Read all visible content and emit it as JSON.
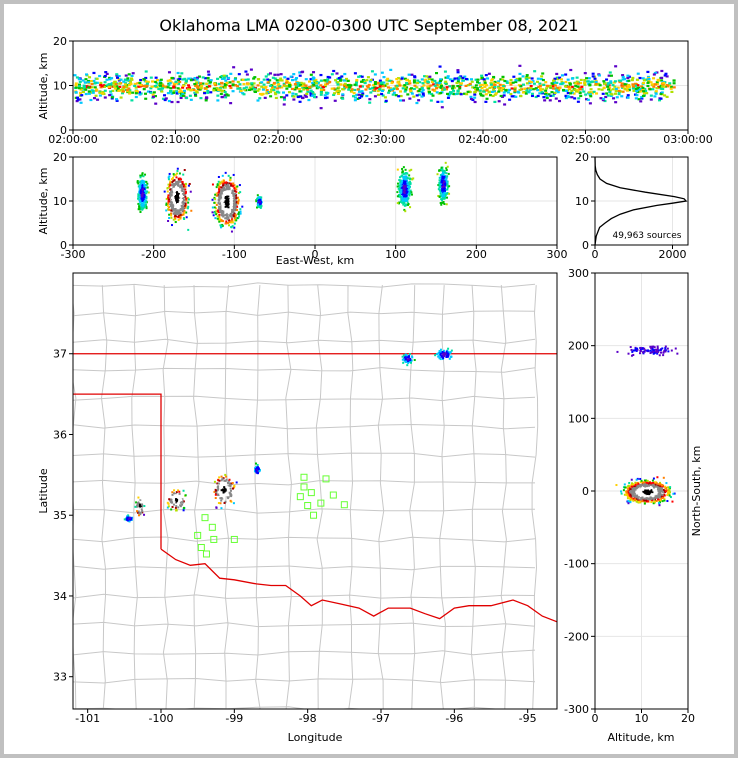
{
  "figure": {
    "title": "Oklahoma LMA 0200-0300 UTC September 08, 2021",
    "source_count_label": "49,963 sources"
  },
  "chart_data": [
    {
      "id": "time-altitude",
      "type": "heatmap",
      "xlabel": "",
      "ylabel": "Altitude, km",
      "x_ticks": [
        "02:00:00",
        "02:10:00",
        "02:20:00",
        "02:30:00",
        "02:40:00",
        "02:50:00",
        "03:00:00"
      ],
      "xlim": [
        "02:00:00",
        "03:00:00"
      ],
      "ylim": [
        0,
        20
      ],
      "y_ticks": [
        0,
        10,
        20
      ],
      "density_band_km": [
        5,
        16
      ],
      "peak_altitude_km": 10
    },
    {
      "id": "east-west-altitude",
      "type": "heatmap",
      "xlabel": "East-West, km",
      "ylabel": "Altitude, km",
      "xlim": [
        -300,
        300
      ],
      "ylim": [
        0,
        20
      ],
      "x_ticks": [
        -300,
        -200,
        -100,
        0,
        100,
        200,
        300
      ],
      "y_ticks": [
        0,
        10,
        20
      ],
      "clusters": [
        {
          "x_km": -215,
          "alt_km": 12,
          "spread_x": 6,
          "spread_alt": 4
        },
        {
          "x_km": -172,
          "alt_km": 11,
          "spread_x": 12,
          "spread_alt": 5
        },
        {
          "x_km": -110,
          "alt_km": 10,
          "spread_x": 14,
          "spread_alt": 5
        },
        {
          "x_km": -70,
          "alt_km": 10,
          "spread_x": 4,
          "spread_alt": 1.5
        },
        {
          "x_km": 110,
          "alt_km": 13,
          "spread_x": 8,
          "spread_alt": 4
        },
        {
          "x_km": 158,
          "alt_km": 14,
          "spread_x": 6,
          "spread_alt": 4
        }
      ]
    },
    {
      "id": "altitude-histogram",
      "type": "line",
      "xlabel": "",
      "ylabel": "",
      "xlim": [
        0,
        2400
      ],
      "ylim": [
        0,
        20
      ],
      "x_ticks": [
        0,
        2000
      ],
      "y_ticks": [
        0,
        10,
        20
      ],
      "altitude_km": [
        0,
        2,
        4,
        5,
        6,
        7,
        8,
        9,
        9.5,
        10,
        10.5,
        11,
        12,
        13,
        14,
        15,
        16,
        17,
        18,
        20
      ],
      "count": [
        0,
        30,
        120,
        260,
        420,
        650,
        1000,
        1600,
        2000,
        2350,
        2300,
        2050,
        1300,
        650,
        300,
        130,
        60,
        20,
        5,
        0
      ]
    },
    {
      "id": "map",
      "type": "scatter",
      "xlabel": "Longitude",
      "ylabel": "Latitude",
      "xlim": [
        -101.2,
        -94.6
      ],
      "ylim": [
        32.6,
        38.0
      ],
      "x_ticks": [
        -101,
        -100,
        -99,
        -98,
        -97,
        -96,
        -95
      ],
      "y_ticks": [
        33,
        34,
        35,
        36,
        37
      ],
      "clusters": [
        {
          "lon": -100.45,
          "lat": 34.97,
          "spread_lon": 0.05,
          "spread_lat": 0.04
        },
        {
          "lon": -100.3,
          "lat": 35.12,
          "spread_lon": 0.05,
          "spread_lat": 0.12
        },
        {
          "lon": -99.8,
          "lat": 35.2,
          "spread_lon": 0.12,
          "spread_lat": 0.12
        },
        {
          "lon": -99.15,
          "lat": 35.32,
          "spread_lon": 0.14,
          "spread_lat": 0.18
        },
        {
          "lon": -98.7,
          "lat": 35.57,
          "spread_lon": 0.04,
          "spread_lat": 0.06
        },
        {
          "lon": -96.65,
          "lat": 36.95,
          "spread_lon": 0.07,
          "spread_lat": 0.06
        },
        {
          "lon": -96.15,
          "lat": 37.0,
          "spread_lon": 0.12,
          "spread_lat": 0.07
        }
      ],
      "stations": [
        {
          "lon": -98.05,
          "lat": 35.47
        },
        {
          "lon": -97.75,
          "lat": 35.45
        },
        {
          "lon": -98.05,
          "lat": 35.35
        },
        {
          "lon": -97.95,
          "lat": 35.28
        },
        {
          "lon": -98.1,
          "lat": 35.23
        },
        {
          "lon": -97.65,
          "lat": 35.25
        },
        {
          "lon": -97.82,
          "lat": 35.15
        },
        {
          "lon": -98.0,
          "lat": 35.12
        },
        {
          "lon": -97.5,
          "lat": 35.13
        },
        {
          "lon": -97.92,
          "lat": 35.0
        },
        {
          "lon": -99.4,
          "lat": 34.97
        },
        {
          "lon": -99.3,
          "lat": 34.85
        },
        {
          "lon": -99.5,
          "lat": 34.75
        },
        {
          "lon": -99.0,
          "lat": 34.7
        },
        {
          "lon": -99.28,
          "lat": 34.7
        },
        {
          "lon": -99.45,
          "lat": 34.6
        },
        {
          "lon": -99.38,
          "lat": 34.52
        }
      ]
    },
    {
      "id": "altitude-north-south",
      "type": "heatmap",
      "xlabel": "Altitude, km",
      "ylabel": "North-South, km",
      "xlim": [
        0,
        20
      ],
      "ylim": [
        -300,
        300
      ],
      "x_ticks": [
        0,
        10,
        20
      ],
      "y_ticks": [
        -300,
        -200,
        -100,
        0,
        100,
        200,
        300
      ],
      "clusters": [
        {
          "alt_km": 11,
          "y_km": 0,
          "spread_alt": 4.5,
          "spread_y": 14
        },
        {
          "alt_km": 12,
          "y_km": 195,
          "spread_alt": 5,
          "spread_y": 6
        }
      ]
    }
  ]
}
